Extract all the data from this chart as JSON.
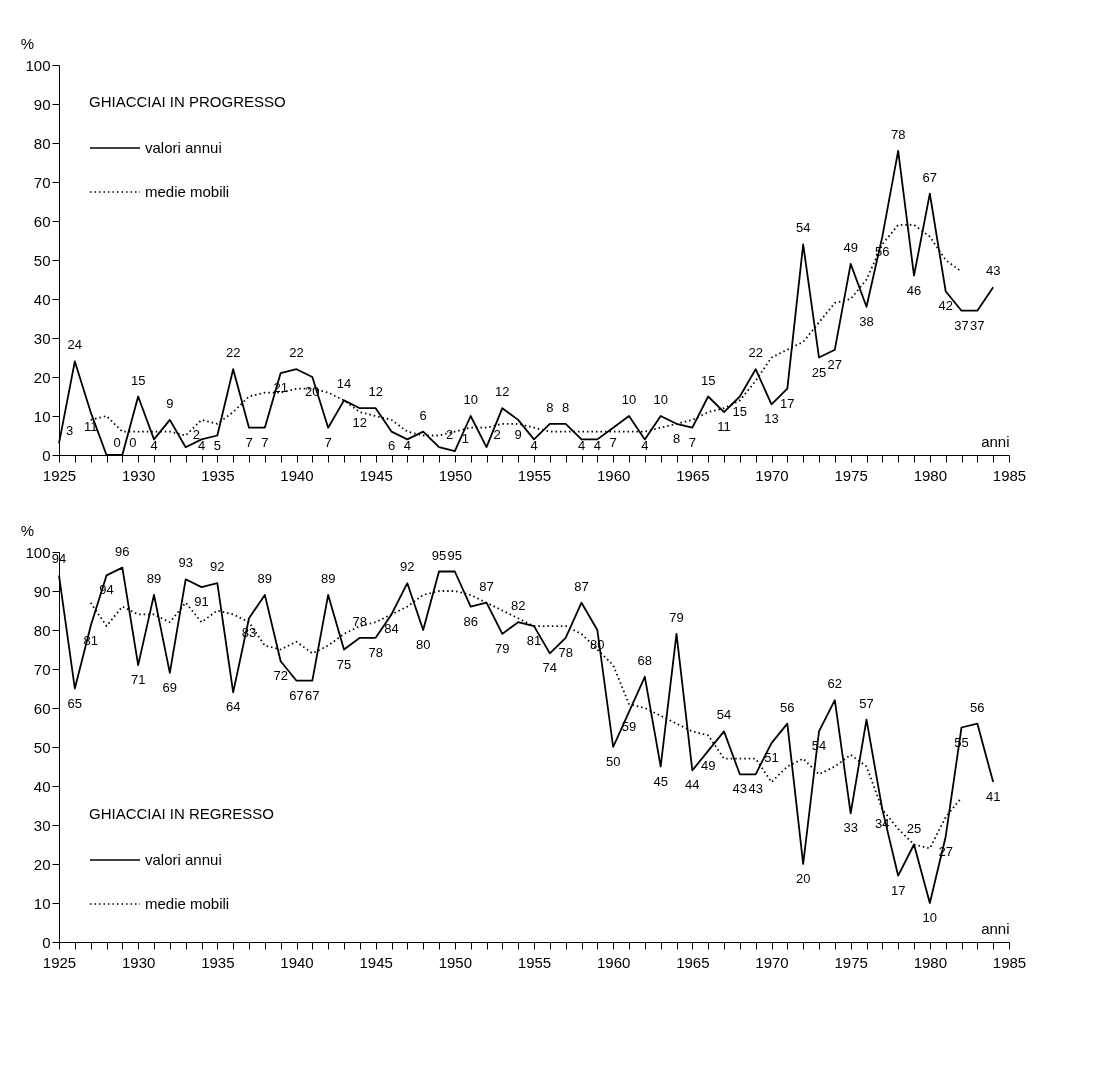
{
  "chart_data": [
    {
      "type": "line",
      "xlabel": "anni",
      "ylabel": "%",
      "legend_title": "GHIACCIAI IN PROGRESSO",
      "legend": "top left",
      "grid": false,
      "marker": "none",
      "x": [
        1925,
        1926,
        1927,
        1928,
        1929,
        1930,
        1931,
        1932,
        1933,
        1934,
        1935,
        1936,
        1937,
        1938,
        1939,
        1940,
        1941,
        1942,
        1943,
        1944,
        1945,
        1946,
        1947,
        1948,
        1949,
        1950,
        1951,
        1952,
        1953,
        1954,
        1955,
        1956,
        1957,
        1958,
        1959,
        1960,
        1961,
        1962,
        1963,
        1964,
        1965,
        1966,
        1967,
        1968,
        1969,
        1970,
        1971,
        1972,
        1973,
        1974,
        1975,
        1976,
        1977,
        1978,
        1979,
        1980,
        1981,
        1982,
        1983,
        1984
      ],
      "xlim": [
        1925,
        1985
      ],
      "xticks": [
        1925,
        {
          "value": 1926,
          "label": null
        },
        {
          "value": 1927,
          "label": null
        },
        {
          "value": 1928,
          "label": null
        },
        {
          "value": 1929,
          "label": null
        },
        1930,
        {
          "value": 1931,
          "label": null
        },
        {
          "value": 1932,
          "label": null
        },
        {
          "value": 1933,
          "label": null
        },
        {
          "value": 1934,
          "label": null
        },
        1935,
        {
          "value": 1936,
          "label": null
        },
        {
          "value": 1937,
          "label": null
        },
        {
          "value": 1938,
          "label": null
        },
        {
          "value": 1939,
          "label": null
        },
        1940,
        {
          "value": 1941,
          "label": null
        },
        {
          "value": 1942,
          "label": null
        },
        {
          "value": 1943,
          "label": null
        },
        {
          "value": 1944,
          "label": null
        },
        1945,
        {
          "value": 1946,
          "label": null
        },
        {
          "value": 1947,
          "label": null
        },
        {
          "value": 1948,
          "label": null
        },
        {
          "value": 1949,
          "label": null
        },
        1950,
        {
          "value": 1951,
          "label": null
        },
        {
          "value": 1952,
          "label": null
        },
        {
          "value": 1953,
          "label": null
        },
        {
          "value": 1954,
          "label": null
        },
        1955,
        {
          "value": 1956,
          "label": null
        },
        {
          "value": 1957,
          "label": null
        },
        {
          "value": 1958,
          "label": null
        },
        {
          "value": 1959,
          "label": null
        },
        1960,
        {
          "value": 1961,
          "label": null
        },
        {
          "value": 1962,
          "label": null
        },
        {
          "value": 1963,
          "label": null
        },
        {
          "value": 1964,
          "label": null
        },
        1965,
        {
          "value": 1966,
          "label": null
        },
        {
          "value": 1967,
          "label": null
        },
        {
          "value": 1968,
          "label": null
        },
        {
          "value": 1969,
          "label": null
        },
        1970,
        {
          "value": 1971,
          "label": null
        },
        {
          "value": 1972,
          "label": null
        },
        {
          "value": 1973,
          "label": null
        },
        {
          "value": 1974,
          "label": null
        },
        1975,
        {
          "value": 1976,
          "label": null
        },
        {
          "value": 1977,
          "label": null
        },
        {
          "value": 1978,
          "label": null
        },
        {
          "value": 1979,
          "label": null
        },
        1980,
        {
          "value": 1981,
          "label": null
        },
        {
          "value": 1982,
          "label": null
        },
        {
          "value": 1983,
          "label": null
        },
        {
          "value": 1984,
          "label": null
        },
        1985
      ],
      "ylim": [
        0,
        100
      ],
      "yticks": [
        0,
        10,
        20,
        30,
        40,
        50,
        60,
        70,
        80,
        90,
        100
      ],
      "series": [
        {
          "name": "valori annui",
          "color": "#000000",
          "line_style": "solid",
          "values": [
            3,
            24,
            11,
            0,
            0,
            15,
            4,
            9,
            2,
            4,
            5,
            22,
            7,
            7,
            21,
            22,
            20,
            7,
            14,
            12,
            12,
            6,
            4,
            6,
            2,
            1,
            10,
            2,
            12,
            9,
            4,
            8,
            8,
            4,
            4,
            7,
            10,
            4,
            10,
            8,
            7,
            15,
            11,
            15,
            22,
            13,
            17,
            54,
            25,
            27,
            49,
            38,
            56,
            78,
            46,
            67,
            42,
            37,
            37,
            43
          ],
          "value_labels": [
            "3",
            "24",
            "11",
            "0",
            "0",
            "15",
            "4",
            "9",
            "2",
            "4",
            "5",
            "22",
            "7",
            "7",
            "21",
            "22",
            "20",
            "7",
            "14",
            "12",
            "12",
            "6",
            "4",
            "6",
            "2",
            "1",
            "10",
            "2",
            "12",
            "9",
            "4",
            "8",
            "8",
            "4",
            "4",
            "7",
            "10",
            "4",
            "10",
            "8",
            "7",
            "15",
            "11",
            "15",
            "22",
            "13",
            "17",
            "54",
            "25",
            "27",
            "49",
            "38",
            "56",
            "78",
            "46",
            "67",
            "42",
            "37",
            "37",
            "43"
          ]
        },
        {
          "name": "medie mobili",
          "color": "#000000",
          "line_style": "dotted",
          "values": [
            null,
            null,
            9,
            10,
            6,
            6,
            6,
            6,
            5,
            9,
            8,
            11,
            15,
            16,
            16,
            17,
            17,
            16,
            14,
            11,
            10,
            9,
            6,
            5,
            5,
            6,
            7,
            7,
            8,
            8,
            7,
            6,
            6,
            6,
            6,
            6,
            6,
            6,
            7,
            8,
            9,
            11,
            12,
            14,
            19,
            25,
            27,
            29,
            34,
            39,
            40,
            45,
            54,
            59,
            59,
            56,
            50,
            47,
            null,
            null
          ]
        }
      ]
    },
    {
      "type": "line",
      "xlabel": "anni",
      "ylabel": "%",
      "legend_title": "GHIACCIAI IN REGRESSO",
      "legend": "bottom left",
      "grid": false,
      "marker": "none",
      "x": [
        1925,
        1926,
        1927,
        1928,
        1929,
        1930,
        1931,
        1932,
        1933,
        1934,
        1935,
        1936,
        1937,
        1938,
        1939,
        1940,
        1941,
        1942,
        1943,
        1944,
        1945,
        1946,
        1947,
        1948,
        1949,
        1950,
        1951,
        1952,
        1953,
        1954,
        1955,
        1956,
        1957,
        1958,
        1959,
        1960,
        1961,
        1962,
        1963,
        1964,
        1965,
        1966,
        1967,
        1968,
        1969,
        1970,
        1971,
        1972,
        1973,
        1974,
        1975,
        1976,
        1977,
        1978,
        1979,
        1980,
        1981,
        1982,
        1983,
        1984
      ],
      "xlim": [
        1925,
        1985
      ],
      "xticks": [
        1925,
        {
          "value": 1926,
          "label": null
        },
        {
          "value": 1927,
          "label": null
        },
        {
          "value": 1928,
          "label": null
        },
        {
          "value": 1929,
          "label": null
        },
        1930,
        {
          "value": 1931,
          "label": null
        },
        {
          "value": 1932,
          "label": null
        },
        {
          "value": 1933,
          "label": null
        },
        {
          "value": 1934,
          "label": null
        },
        1935,
        {
          "value": 1936,
          "label": null
        },
        {
          "value": 1937,
          "label": null
        },
        {
          "value": 1938,
          "label": null
        },
        {
          "value": 1939,
          "label": null
        },
        1940,
        {
          "value": 1941,
          "label": null
        },
        {
          "value": 1942,
          "label": null
        },
        {
          "value": 1943,
          "label": null
        },
        {
          "value": 1944,
          "label": null
        },
        1945,
        {
          "value": 1946,
          "label": null
        },
        {
          "value": 1947,
          "label": null
        },
        {
          "value": 1948,
          "label": null
        },
        {
          "value": 1949,
          "label": null
        },
        1950,
        {
          "value": 1951,
          "label": null
        },
        {
          "value": 1952,
          "label": null
        },
        {
          "value": 1953,
          "label": null
        },
        {
          "value": 1954,
          "label": null
        },
        1955,
        {
          "value": 1956,
          "label": null
        },
        {
          "value": 1957,
          "label": null
        },
        {
          "value": 1958,
          "label": null
        },
        {
          "value": 1959,
          "label": null
        },
        1960,
        {
          "value": 1961,
          "label": null
        },
        {
          "value": 1962,
          "label": null
        },
        {
          "value": 1963,
          "label": null
        },
        {
          "value": 1964,
          "label": null
        },
        1965,
        {
          "value": 1966,
          "label": null
        },
        {
          "value": 1967,
          "label": null
        },
        {
          "value": 1968,
          "label": null
        },
        {
          "value": 1969,
          "label": null
        },
        1970,
        {
          "value": 1971,
          "label": null
        },
        {
          "value": 1972,
          "label": null
        },
        {
          "value": 1973,
          "label": null
        },
        {
          "value": 1974,
          "label": null
        },
        1975,
        {
          "value": 1976,
          "label": null
        },
        {
          "value": 1977,
          "label": null
        },
        {
          "value": 1978,
          "label": null
        },
        {
          "value": 1979,
          "label": null
        },
        1980,
        {
          "value": 1981,
          "label": null
        },
        {
          "value": 1982,
          "label": null
        },
        {
          "value": 1983,
          "label": null
        },
        {
          "value": 1984,
          "label": null
        },
        1985
      ],
      "ylim": [
        0,
        100
      ],
      "yticks": [
        0,
        10,
        20,
        30,
        40,
        50,
        60,
        70,
        80,
        90,
        100
      ],
      "series": [
        {
          "name": "valori annui",
          "color": "#000000",
          "line_style": "solid",
          "values": [
            94,
            65,
            81,
            94,
            96,
            71,
            89,
            69,
            93,
            91,
            92,
            64,
            83,
            89,
            72,
            67,
            67,
            89,
            75,
            78,
            78,
            84,
            92,
            80,
            95,
            95,
            86,
            87,
            79,
            82,
            81,
            74,
            78,
            87,
            80,
            50,
            59,
            68,
            45,
            79,
            44,
            49,
            54,
            43,
            43,
            51,
            56,
            20,
            54,
            62,
            33,
            57,
            34,
            17,
            25,
            10,
            27,
            55,
            56,
            41
          ],
          "value_labels": [
            "94",
            "65",
            "81",
            "94",
            "96",
            "71",
            "89",
            "69",
            "93",
            "91",
            "92",
            "64",
            "83",
            "89",
            "72",
            "67",
            "67",
            "89",
            "75",
            "78",
            "78",
            "84",
            "92",
            "80",
            "95",
            "95",
            "86",
            "87",
            "79",
            "82",
            "81",
            "74",
            "78",
            "87",
            "80",
            "50",
            "59",
            "68",
            "45",
            "79",
            "44",
            "49",
            "54",
            "43",
            "43",
            "51",
            "56",
            "20",
            "54",
            "62",
            "33",
            "57",
            "34",
            "17",
            "25",
            "10",
            "27",
            "55",
            "56",
            "41"
          ]
        },
        {
          "name": "medie mobili",
          "color": "#000000",
          "line_style": "dotted",
          "values": [
            null,
            null,
            87,
            81,
            86,
            84,
            84,
            82,
            87,
            82,
            85,
            84,
            82,
            76,
            75,
            77,
            74,
            76,
            79,
            81,
            82,
            84,
            86,
            89,
            90,
            90,
            89,
            87,
            85,
            83,
            81,
            81,
            81,
            79,
            75,
            71,
            61,
            60,
            58,
            56,
            54,
            53,
            47,
            47,
            47,
            41,
            45,
            47,
            43,
            45,
            48,
            45,
            34,
            29,
            25,
            24,
            32,
            37,
            null,
            null
          ]
        }
      ]
    }
  ]
}
